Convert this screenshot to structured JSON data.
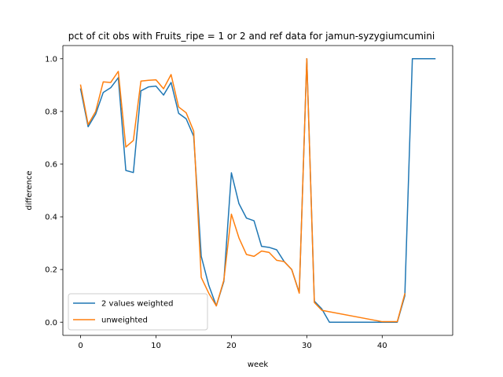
{
  "chart_data": {
    "type": "line",
    "title": "pct of cit obs with Fruits_ripe = 1 or 2 and ref data for jamun-syzygiumcumini",
    "xlabel": "week",
    "ylabel": "difference",
    "xlim": [
      -2.35,
      49.35
    ],
    "ylim": [
      -0.05,
      1.05
    ],
    "xticks": [
      0,
      10,
      20,
      30,
      40
    ],
    "yticks": [
      0.0,
      0.2,
      0.4,
      0.6,
      0.8,
      1.0
    ],
    "xtick_labels": [
      "0",
      "10",
      "20",
      "30",
      "40"
    ],
    "ytick_labels": [
      "0.0",
      "0.2",
      "0.4",
      "0.6",
      "0.8",
      "1.0"
    ],
    "grid": false,
    "legend": {
      "position": "lower-left"
    },
    "series": [
      {
        "name": "2 values weighted",
        "color": "#1f77b4",
        "x": [
          0,
          1,
          2,
          3,
          4,
          5,
          6,
          7,
          8,
          9,
          10,
          11,
          12,
          13,
          14,
          15,
          16,
          17,
          18,
          19,
          20,
          21,
          22,
          23,
          24,
          25,
          26,
          27,
          28,
          29,
          30,
          31,
          32,
          33,
          34,
          35,
          36,
          37,
          38,
          39,
          40,
          41,
          42,
          43,
          44,
          45,
          46,
          47
        ],
        "y": [
          0.885,
          0.742,
          0.79,
          0.872,
          0.89,
          0.928,
          0.576,
          0.568,
          0.878,
          0.893,
          0.896,
          0.862,
          0.91,
          0.793,
          0.772,
          0.706,
          0.25,
          0.14,
          0.062,
          0.155,
          0.567,
          0.45,
          0.395,
          0.385,
          0.288,
          0.284,
          0.275,
          0.23,
          0.2,
          0.112,
          1.0,
          0.08,
          0.05,
          0.0,
          0.0,
          0.0,
          0.0,
          0.0,
          0.0,
          0.0,
          0.0,
          0.0,
          0.0,
          0.1,
          1.0,
          1.0,
          1.0,
          1.0
        ]
      },
      {
        "name": "unweighted",
        "color": "#ff7f0e",
        "x": [
          0,
          1,
          2,
          3,
          4,
          5,
          6,
          7,
          8,
          9,
          10,
          11,
          12,
          13,
          14,
          15,
          16,
          17,
          18,
          19,
          20,
          21,
          22,
          23,
          24,
          25,
          26,
          27,
          28,
          29,
          30,
          31,
          32,
          40,
          41,
          42,
          43
        ],
        "y": [
          0.9,
          0.75,
          0.8,
          0.912,
          0.91,
          0.952,
          0.665,
          0.69,
          0.915,
          0.918,
          0.92,
          0.886,
          0.94,
          0.817,
          0.795,
          0.725,
          0.17,
          0.11,
          0.062,
          0.16,
          0.41,
          0.32,
          0.257,
          0.25,
          0.27,
          0.265,
          0.235,
          0.23,
          0.2,
          0.11,
          1.0,
          0.075,
          0.045,
          0.002,
          0.002,
          0.002,
          0.108
        ]
      }
    ]
  }
}
